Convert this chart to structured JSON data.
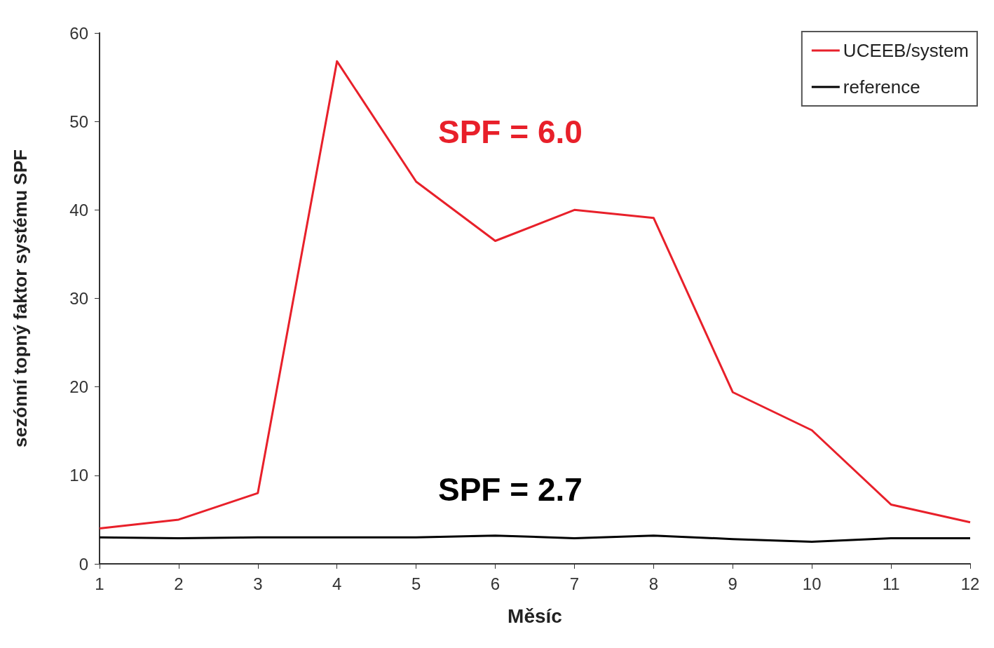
{
  "chart_data": {
    "type": "line",
    "xlabel": "Měsíc",
    "ylabel": "sezónní topný faktor systému SPF",
    "x": [
      1,
      2,
      3,
      4,
      5,
      6,
      7,
      8,
      9,
      10,
      11,
      12
    ],
    "xlim": [
      1,
      12
    ],
    "xticks": [
      1,
      2,
      3,
      4,
      5,
      6,
      7,
      8,
      9,
      10,
      11,
      12
    ],
    "series": [
      {
        "name": "UCEEB/system",
        "color": "#e8202a",
        "values": [
          4.0,
          5.0,
          8.0,
          56.8,
          43.2,
          36.5,
          40.0,
          39.1,
          19.4,
          15.1,
          6.7,
          4.7
        ]
      },
      {
        "name": "reference",
        "color": "#000000",
        "values": [
          3.0,
          2.9,
          3.0,
          3.0,
          3.0,
          3.2,
          2.9,
          3.2,
          2.8,
          2.5,
          2.9,
          2.9
        ]
      }
    ],
    "annotations": [
      "SPF = 6.0",
      "SPF = 2.7"
    ],
    "ylim": [
      0,
      60
    ],
    "yticks": [
      0,
      10,
      20,
      30,
      40,
      50,
      60
    ],
    "grid": false,
    "legend": "top right",
    "marker": "none",
    "line_style": "solid"
  }
}
